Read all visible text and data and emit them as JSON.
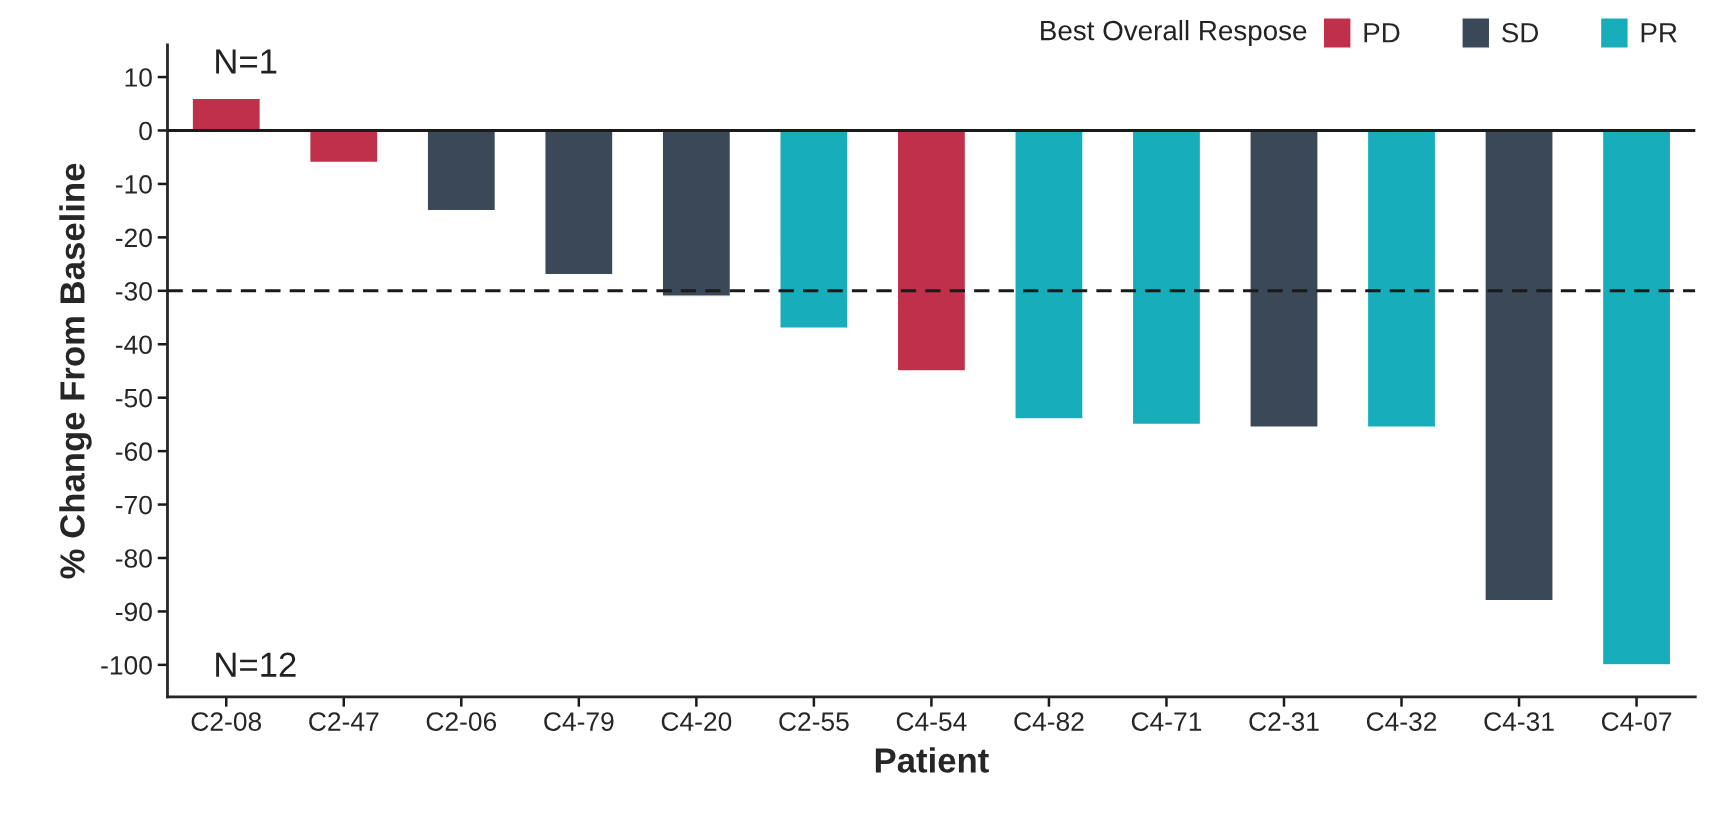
{
  "chart_data": {
    "type": "bar",
    "xlabel": "Patient",
    "ylabel": "% Change From Baseline",
    "legend_title": "Best Overall Respose",
    "categories": [
      "C2-08",
      "C2-47",
      "C2-06",
      "C4-79",
      "C4-20",
      "C2-55",
      "C4-54",
      "C4-82",
      "C4-71",
      "C2-31",
      "C4-32",
      "C4-31",
      "C4-07"
    ],
    "series": [
      {
        "name": "PD",
        "color": "#c0304a",
        "values": [
          6,
          -6,
          null,
          null,
          null,
          null,
          -45,
          null,
          null,
          null,
          null,
          null,
          null
        ]
      },
      {
        "name": "SD",
        "color": "#3b4858",
        "values": [
          null,
          null,
          -15,
          -27,
          -31,
          null,
          null,
          null,
          null,
          -55.5,
          null,
          -88,
          null
        ]
      },
      {
        "name": "PR",
        "color": "#17adba",
        "values": [
          null,
          null,
          null,
          null,
          null,
          -37,
          null,
          -54,
          -55,
          null,
          -55.5,
          null,
          -100
        ]
      }
    ],
    "ylim": [
      -106,
      16
    ],
    "yticks": [
      10,
      0,
      -10,
      -20,
      -30,
      -40,
      -50,
      -60,
      -70,
      -80,
      -90,
      -100
    ],
    "ref_lines": [
      {
        "axis": "y",
        "value": 0,
        "line_style": "solid",
        "color": "#1a1a1a"
      },
      {
        "axis": "y",
        "value": -30,
        "line_style": "dashed",
        "color": "#1a1a1a"
      }
    ],
    "annotations": [
      "N=1",
      "N=12"
    ],
    "legend": "top right",
    "grid": false
  }
}
